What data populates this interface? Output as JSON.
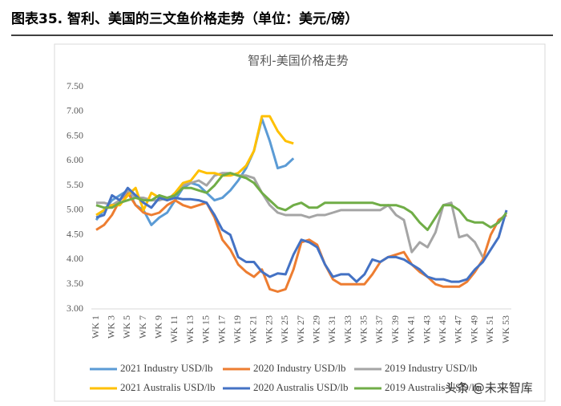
{
  "header": "图表35. 智利、美国的三文鱼价格走势（单位：美元/磅）",
  "watermark": "头条 @未来智库",
  "chart_data": {
    "type": "line",
    "title": "智利-美国价格走势",
    "categories": [
      "WK 1",
      null,
      "WK 3",
      null,
      "WK 5",
      null,
      "WK 7",
      null,
      "WK 9",
      null,
      "WK 11",
      null,
      "WK 13",
      null,
      "WK 15",
      null,
      "WK 17",
      null,
      "WK 19",
      null,
      "WK 21",
      null,
      "WK 23",
      null,
      "WK 25",
      null,
      "WK 27",
      null,
      "WK 29",
      null,
      "WK 31",
      null,
      "WK 33",
      null,
      "WK 35",
      null,
      "WK 37",
      null,
      "WK 39",
      null,
      "WK 41",
      null,
      "WK 43",
      null,
      "WK 45",
      null,
      "WK 47",
      null,
      "WK 49",
      null,
      "WK 51",
      null,
      "WK 53"
    ],
    "ylim": [
      3,
      7.5
    ],
    "yticks": [
      {
        "value": 3,
        "label": "3.00"
      },
      {
        "value": 3.5,
        "label": "3.50"
      },
      {
        "value": 4,
        "label": "4.00"
      },
      {
        "value": 4.5,
        "label": "4.50"
      },
      {
        "value": 5,
        "label": "5.00"
      },
      {
        "value": 5.5,
        "label": "5.50"
      },
      {
        "value": 6,
        "label": "6.00"
      },
      {
        "value": 6.5,
        "label": "6.50"
      },
      {
        "value": 7,
        "label": "7.00"
      },
      {
        "value": 7.5,
        "label": "7.50"
      }
    ],
    "grid": false,
    "series": [
      {
        "name": "2021 Industry USD/lb",
        "color": "#5b9bd5",
        "values": [
          4.8,
          5.0,
          5.2,
          5.3,
          5.4,
          5.1,
          5.0,
          4.7,
          4.85,
          4.95,
          5.2,
          5.45,
          5.55,
          5.5,
          5.35,
          5.2,
          5.25,
          5.4,
          5.6,
          5.85,
          6.2,
          6.85,
          6.4,
          5.85,
          5.9,
          6.05,
          null,
          null,
          null,
          null,
          null,
          null,
          null,
          null,
          null,
          null,
          null,
          null,
          null,
          null,
          null,
          null,
          null,
          null,
          null,
          null,
          null,
          null,
          null,
          null,
          null,
          null,
          null
        ]
      },
      {
        "name": "2020 Industry USD/lb",
        "color": "#ed7d31",
        "values": [
          4.6,
          4.7,
          4.9,
          5.2,
          5.35,
          5.1,
          4.95,
          4.9,
          4.95,
          5.1,
          5.2,
          5.1,
          5.05,
          5.1,
          5.15,
          4.85,
          4.4,
          4.2,
          3.9,
          3.75,
          3.65,
          3.8,
          3.4,
          3.35,
          3.4,
          3.8,
          4.35,
          4.4,
          4.3,
          3.9,
          3.6,
          3.5,
          3.5,
          3.5,
          3.5,
          3.7,
          3.95,
          4.05,
          4.1,
          4.15,
          3.9,
          3.75,
          3.65,
          3.5,
          3.45,
          3.45,
          3.45,
          3.55,
          3.75,
          4.0,
          4.5,
          4.8,
          4.9
        ]
      },
      {
        "name": "2019 Industry USD/lb",
        "color": "#a5a5a5",
        "values": [
          5.15,
          5.15,
          5.1,
          5.2,
          5.4,
          5.25,
          5.25,
          5.2,
          5.2,
          5.25,
          5.3,
          5.5,
          5.55,
          5.6,
          5.5,
          5.7,
          5.75,
          5.75,
          5.7,
          5.7,
          5.65,
          5.35,
          5.1,
          4.95,
          4.9,
          4.9,
          4.9,
          4.85,
          4.9,
          4.9,
          4.95,
          5.0,
          5.0,
          5.0,
          5.0,
          5.0,
          5.0,
          5.1,
          4.9,
          4.8,
          4.15,
          4.35,
          4.25,
          4.55,
          5.1,
          5.15,
          4.45,
          4.5,
          4.35,
          4.05,
          null,
          null,
          null
        ]
      },
      {
        "name": "2021 Australis USD/lb",
        "color": "#ffc000",
        "values": [
          4.9,
          5.0,
          5.1,
          5.1,
          5.3,
          5.45,
          5.0,
          5.35,
          5.25,
          5.2,
          5.35,
          5.55,
          5.6,
          5.8,
          5.75,
          5.75,
          5.7,
          5.7,
          5.75,
          5.9,
          6.2,
          6.9,
          6.9,
          6.6,
          6.4,
          6.35,
          null,
          null,
          null,
          null,
          null,
          null,
          null,
          null,
          null,
          null,
          null,
          null,
          null,
          null,
          null,
          null,
          null,
          null,
          null,
          null,
          null,
          null,
          null,
          null,
          null,
          null,
          null
        ]
      },
      {
        "name": "2020 Australis USD/lb",
        "color": "#4472c4",
        "values": [
          4.85,
          4.9,
          5.3,
          5.2,
          5.45,
          5.3,
          5.15,
          5.05,
          5.25,
          5.2,
          5.25,
          5.22,
          5.22,
          5.2,
          5.15,
          4.9,
          4.6,
          4.5,
          4.05,
          3.95,
          3.95,
          3.75,
          3.65,
          3.72,
          3.7,
          4.1,
          4.4,
          4.35,
          4.25,
          3.9,
          3.65,
          3.7,
          3.7,
          3.55,
          3.7,
          4.0,
          3.95,
          4.05,
          4.05,
          4.0,
          3.9,
          3.8,
          3.65,
          3.6,
          3.6,
          3.55,
          3.55,
          3.6,
          3.8,
          3.95,
          4.2,
          4.45,
          5.0
        ]
      },
      {
        "name": "2019 Australis USD/lb",
        "color": "#70ad47",
        "values": [
          5.1,
          5.05,
          5.05,
          5.15,
          5.2,
          5.25,
          5.2,
          5.2,
          5.3,
          5.25,
          5.3,
          5.45,
          5.45,
          5.4,
          5.35,
          5.5,
          5.7,
          5.75,
          5.7,
          5.65,
          5.55,
          5.35,
          5.2,
          5.05,
          5.0,
          5.1,
          5.15,
          5.05,
          5.05,
          5.15,
          5.15,
          5.15,
          5.15,
          5.15,
          5.15,
          5.15,
          5.1,
          5.1,
          5.1,
          5.05,
          4.95,
          4.75,
          4.6,
          4.85,
          5.1,
          5.1,
          5.0,
          4.8,
          4.75,
          4.75,
          4.65,
          4.75,
          4.95
        ]
      }
    ]
  }
}
